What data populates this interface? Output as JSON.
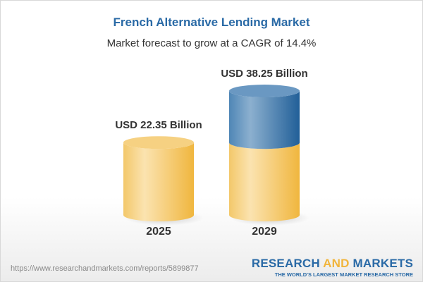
{
  "title": "French Alternative Lending Market",
  "subtitle": "Market forecast to grow at a CAGR of 14.4%",
  "chart_data": {
    "type": "bar",
    "style": "3d-cylinder",
    "categories": [
      "2025",
      "2029"
    ],
    "values": [
      22.35,
      38.25
    ],
    "data_labels": [
      "USD 22.35 Billion",
      "USD 38.25 Billion"
    ],
    "unit": "USD Billion",
    "cagr": "14.4%",
    "colors": {
      "base": "#f2c766",
      "growth": "#4a82b4"
    }
  },
  "footer": {
    "url": "https://www.researchandmarkets.com/reports/5899877",
    "logo_part1": "RESEARCH ",
    "logo_part2": "AND",
    "logo_part3": " MARKETS",
    "tagline": "THE WORLD'S LARGEST MARKET RESEARCH STORE"
  }
}
